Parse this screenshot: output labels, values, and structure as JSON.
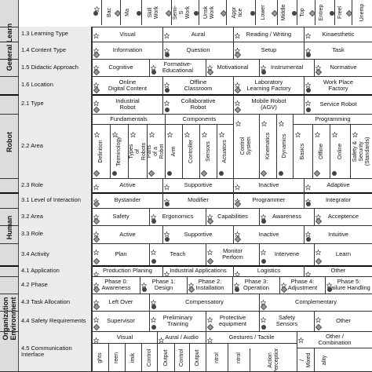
{
  "sections": [
    {
      "label": "General Learn"
    },
    {
      "label": "Robot"
    },
    {
      "label": "Human"
    },
    {
      "label": "Organization\nEnvironment"
    }
  ],
  "header_cols": [
    "Bac",
    "Ma",
    "Skill\nWork",
    "Semi-S\nWork",
    "Unsk\nWork",
    "Appr\ntice",
    "Lower",
    "Middle",
    "Top",
    "Entrep",
    "Freel",
    "Unemp"
  ],
  "rows": {
    "r1_3": {
      "label": "1.3 Learning Type",
      "cells": [
        "Visual",
        "Aural",
        "Reading / Writing",
        "Kinaesthetic"
      ]
    },
    "r1_4": {
      "label": "1.4 Content Type",
      "cells": [
        "Information",
        "Question",
        "Setup",
        "Task"
      ]
    },
    "r1_5": {
      "label": "1.5 Didactic Approach",
      "cells": [
        "Cognitive",
        "Formative-\nEducational",
        "Motivational",
        "Instrumental",
        "Normative"
      ]
    },
    "r1_6": {
      "label": "1.6 Location",
      "cells": [
        "Online\nDigital Content",
        "Offline\nClassroom",
        "Laboratory\nLearning Factory",
        "Work Place\nFactory"
      ]
    },
    "r2_1": {
      "label": "2.1 Type",
      "cells": [
        "Industrial\nRobot",
        "Collaborative\nRobot",
        "Mobile Robot\n(AGV)",
        "Service Robot"
      ]
    },
    "r2_2": {
      "label": "2.2 Area",
      "groups": [
        "Fundamentals",
        "Components",
        "Programming"
      ],
      "vcols": [
        "Definition",
        "Terminology",
        "Types of Robots",
        "Parts of a Robot",
        "Arm",
        "Controller",
        "Sensors",
        "Actuators",
        "Control System",
        "Kinematics",
        "Dynamics",
        "Basics",
        "Offline",
        "Online",
        "Safety & Security\n(Standards)"
      ]
    },
    "r2_3": {
      "label": "2.3 Role",
      "cells": [
        "Active",
        "Supportive",
        "Inactive",
        "Adaptive"
      ]
    },
    "r3_1": {
      "label": "3.1 Level of Interaction",
      "cells": [
        "Bystander",
        "Modifier",
        "Programmer",
        "Integrator"
      ]
    },
    "r3_2": {
      "label": "3.2 Area",
      "cells": [
        "Safety",
        "Ergonomics",
        "Capabilities",
        "Awareness",
        "Acceptence"
      ]
    },
    "r3_3": {
      "label": "3.3 Role",
      "cells": [
        "Active",
        "Supportive",
        "Inactive",
        "Intuitive"
      ]
    },
    "r3_4": {
      "label": "3.4 Activity",
      "cells": [
        "Plan",
        "Teach",
        "Monitor\nPerform",
        "Intervene",
        "Learn"
      ]
    },
    "r4_1": {
      "label": "4.1 Application",
      "cells": [
        "Production Planing",
        "Industrial Applications",
        "Logistics",
        "Other"
      ]
    },
    "r4_2": {
      "label": "4.2 Phase",
      "cells": [
        "Phase 0:\nAwareness",
        "Phase 1:\nDesign",
        "Phase 2:\nInstallation",
        "Phase 3:\nOperation",
        "Phase 4:\nAdjustment",
        "Phase 5:\nFailure Handling"
      ]
    },
    "r4_3": {
      "label": "4.3 Task Allocation",
      "cells": [
        "Left Over",
        "Compensatory",
        "Complementary"
      ]
    },
    "r4_4": {
      "label": "4.4 Safety Requirements",
      "cells": [
        "Supervisor",
        "Preliminary\nTraining",
        "Protective\nequipment",
        "Safety\nSensors",
        "Other"
      ]
    },
    "r4_5": {
      "label": "4.5 Communication\nInterface",
      "groups": [
        "Visual",
        "Aural / Audio",
        "Gestures / Tactile",
        "Other /\nCombination"
      ],
      "vcols": [
        "ghts",
        "reen",
        "imik",
        "Control",
        "Output",
        "Control",
        "Output",
        "ntrol",
        "ntrol",
        "Action\nPerception",
        "/ Mixed",
        "ality"
      ]
    }
  }
}
